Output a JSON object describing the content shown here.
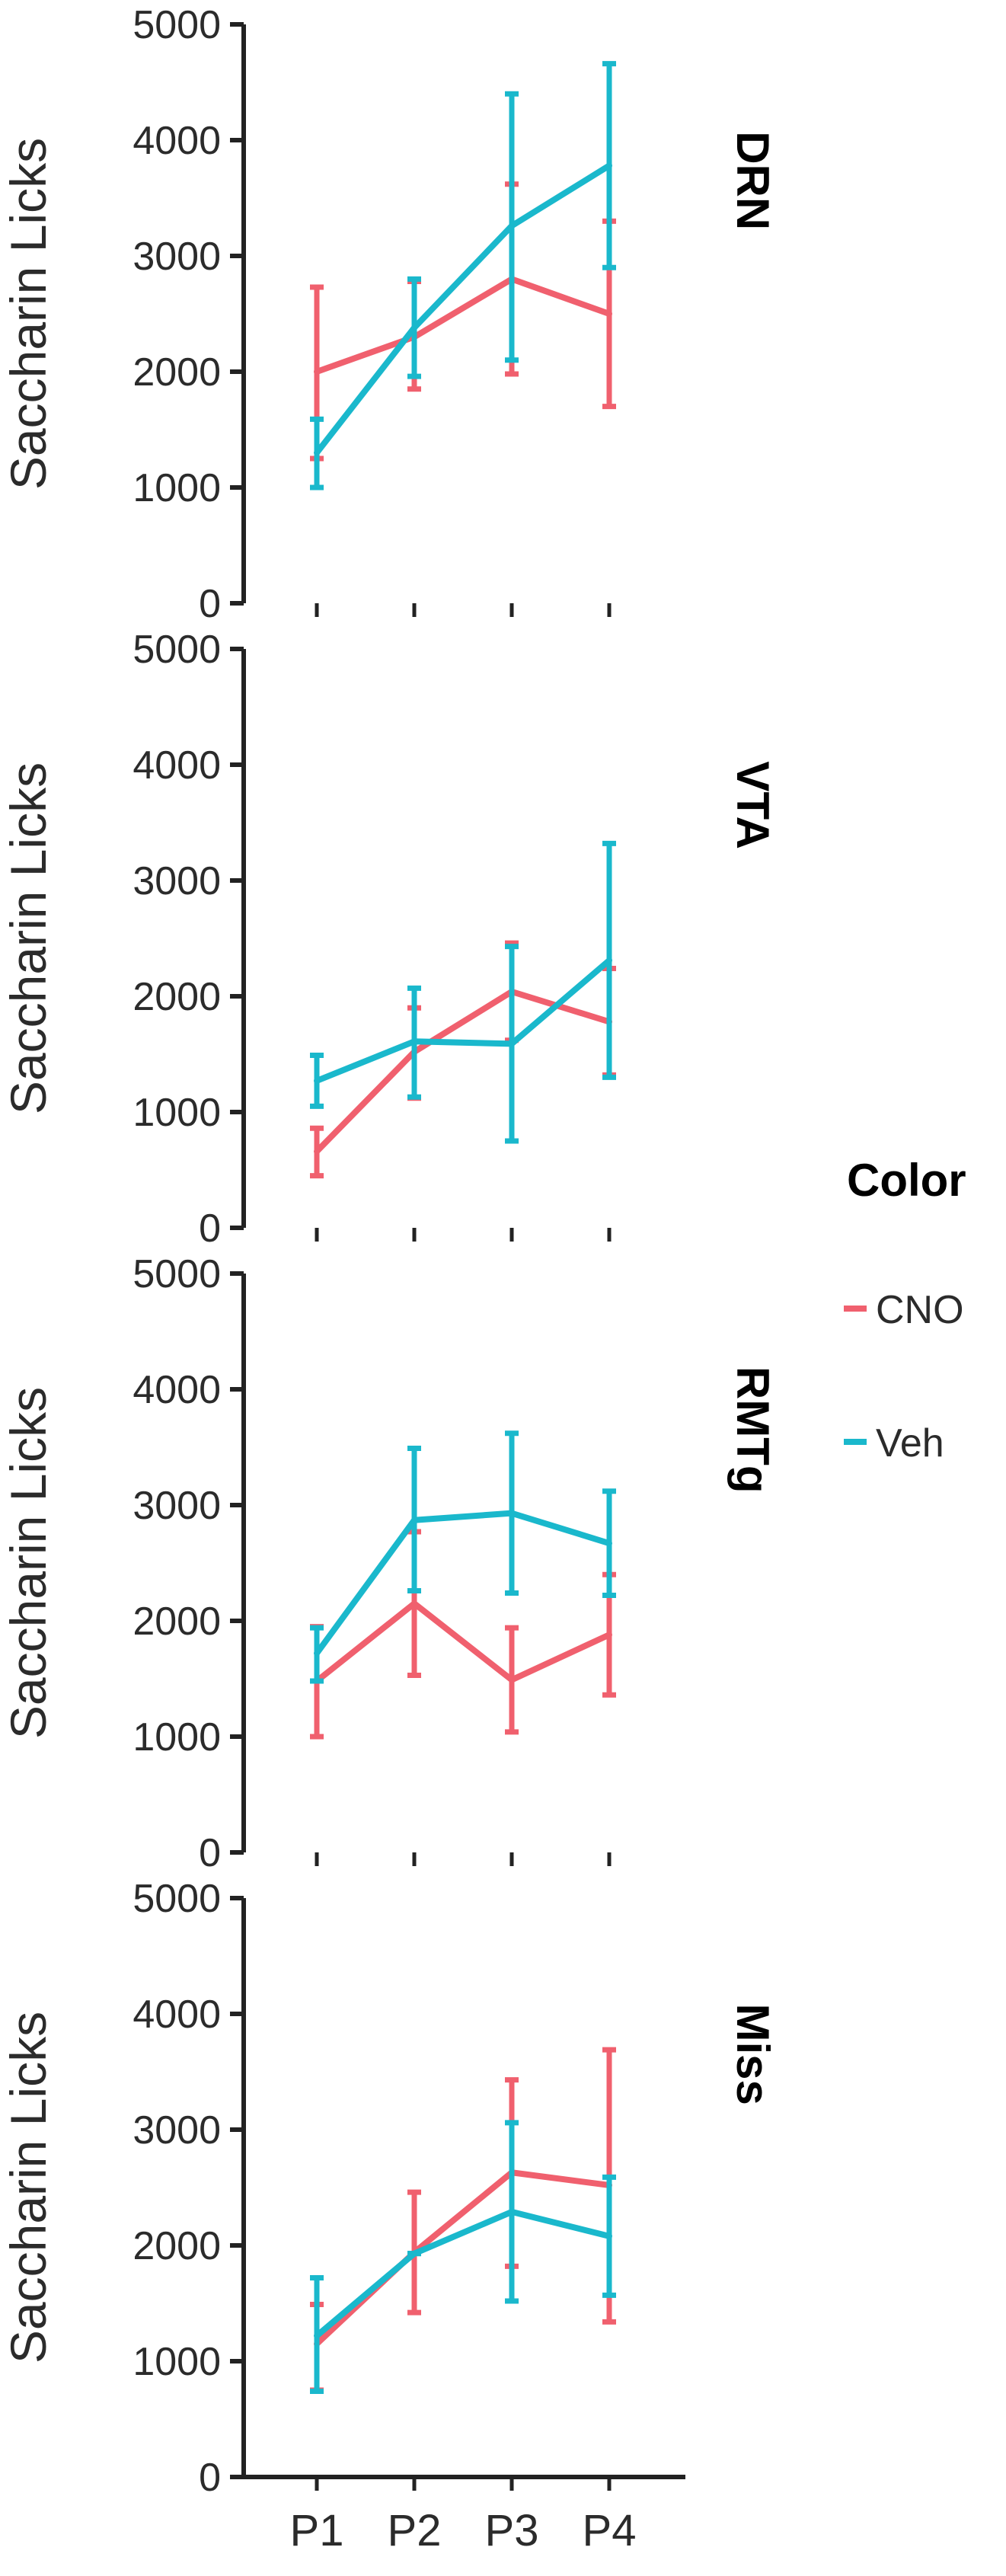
{
  "chart_data": {
    "type": "line",
    "x": [
      "P1",
      "P2",
      "P3",
      "P4"
    ],
    "ylabel": "Saccharin Licks",
    "ylim": [
      0,
      5000
    ],
    "yticks": [
      0,
      1000,
      2000,
      3000,
      4000,
      5000
    ],
    "legend": {
      "title": "Color",
      "placement": "right",
      "entries": [
        "CNO",
        "Veh"
      ]
    },
    "colors": {
      "CNO": "#f0606e",
      "Veh": "#1ab8cc"
    },
    "panels": [
      {
        "label": "DRN",
        "series": [
          {
            "name": "CNO",
            "values": [
              2000,
              2300,
              2800,
              2500
            ],
            "lower": [
              1250,
              1850,
              1980,
              1700
            ],
            "upper": [
              2730,
              2780,
              3620,
              3300
            ]
          },
          {
            "name": "Veh",
            "values": [
              1300,
              2380,
              3260,
              3780
            ],
            "lower": [
              1000,
              1960,
              2100,
              2900
            ],
            "upper": [
              1590,
              2800,
              4400,
              4660
            ]
          }
        ]
      },
      {
        "label": "VTA",
        "series": [
          {
            "name": "CNO",
            "values": [
              660,
              1520,
              2040,
              1780
            ],
            "lower": [
              450,
              1120,
              1620,
              1320
            ],
            "upper": [
              860,
              1900,
              2460,
              2240
            ]
          },
          {
            "name": "Veh",
            "values": [
              1270,
              1610,
              1590,
              2310
            ],
            "lower": [
              1050,
              1130,
              750,
              1300
            ],
            "upper": [
              1490,
              2070,
              2430,
              3320
            ]
          }
        ]
      },
      {
        "label": "RMTg",
        "series": [
          {
            "name": "CNO",
            "values": [
              1480,
              2150,
              1490,
              1880
            ],
            "lower": [
              1000,
              1530,
              1040,
              1360
            ],
            "upper": [
              1950,
              2770,
              1940,
              2400
            ]
          },
          {
            "name": "Veh",
            "values": [
              1720,
              2870,
              2930,
              2670
            ],
            "lower": [
              1480,
              2260,
              2240,
              2220
            ],
            "upper": [
              1940,
              3490,
              3620,
              3120
            ]
          }
        ]
      },
      {
        "label": "Miss",
        "series": [
          {
            "name": "CNO",
            "values": [
              1150,
              1940,
              2630,
              2520
            ],
            "lower": [
              750,
              1420,
              1820,
              1340
            ],
            "upper": [
              1490,
              2460,
              3430,
              3690
            ]
          },
          {
            "name": "Veh",
            "values": [
              1220,
              1930,
              2290,
              2080
            ],
            "lower": [
              740,
              1930,
              1520,
              1570
            ],
            "upper": [
              1720,
              1930,
              3060,
              2590
            ]
          }
        ]
      }
    ]
  }
}
